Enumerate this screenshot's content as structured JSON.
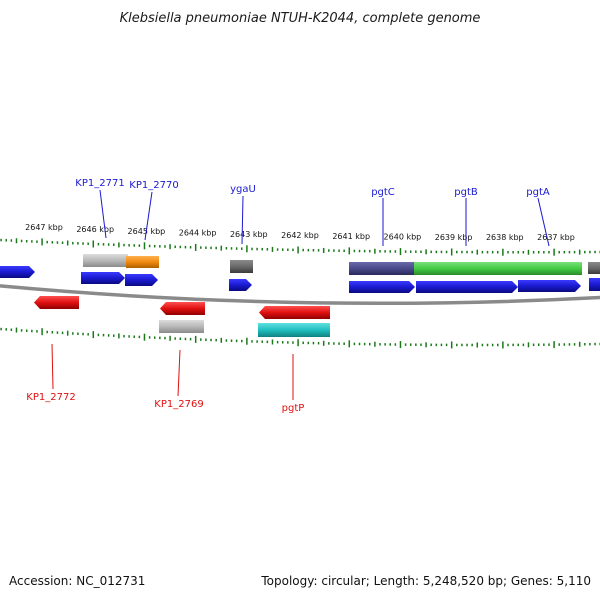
{
  "title": "Klebsiella pneumoniae NTUH-K2044, complete genome",
  "footer": {
    "accession": "Accession: NC_012731",
    "summary": "Topology: circular; Length: 5,248,520 bp; Genes: 5,110"
  },
  "ruler_labels": [
    "2647 kbp",
    "2646 kbp",
    "2645 kbp",
    "2644 kbp",
    "2643 kbp",
    "2642 kbp",
    "2641 kbp",
    "2640 kbp",
    "2639 kbp",
    "2638 kbp",
    "2637 kbp"
  ],
  "gene_labels": {
    "forward": [
      "KP1_2771",
      "KP1_2770",
      "ygaU",
      "pgtC",
      "pgtB",
      "pgtA"
    ],
    "reverse": [
      "KP1_2772",
      "KP1_2769",
      "pgtP"
    ]
  },
  "colors": {
    "forward_gene": "#1a1ad0",
    "reverse_gene": "#e01010",
    "tick": "#1a7a1a",
    "backbone": "#808080",
    "feature_green": "#44cc44",
    "feature_purple": "#4a4a8a",
    "feature_orange": "#f08a10",
    "feature_cyan": "#20c0c0",
    "feature_grey": "#b8b8b8",
    "feature_dark_grey": "#6a6a6a"
  }
}
